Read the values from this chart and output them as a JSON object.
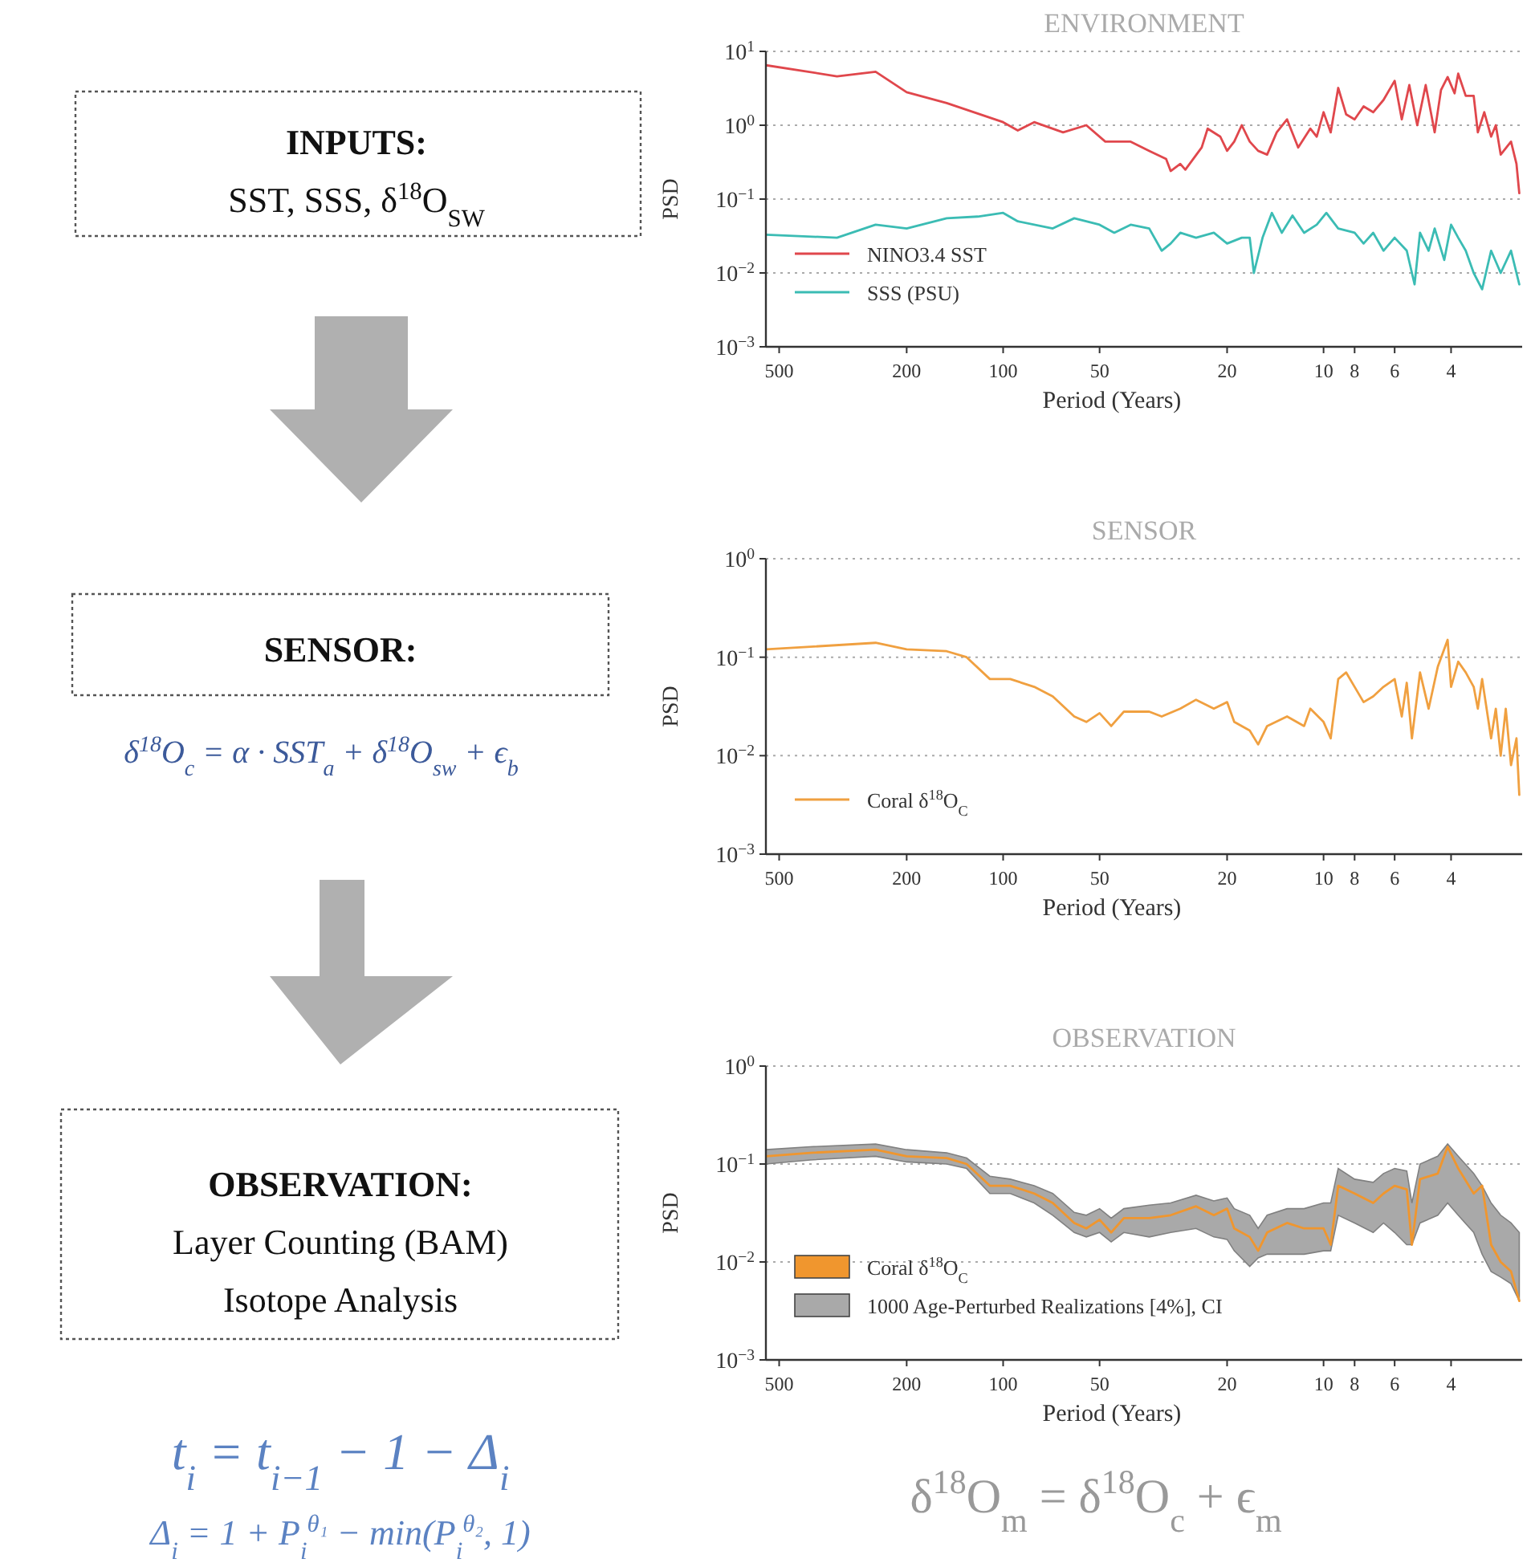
{
  "chart_data": [
    {
      "type": "other",
      "annotations": [
        "INPUTS:",
        "SST, SSS, δ$^{18}$O$_{SW}$",
        "SENSOR:",
        "δ$^{18}$O$_{c}$ = α · SST$_{a}$ + δ$^{18}$O$_{sw}$ + ϵ$_{b}$",
        "OBSERVATION:",
        "Layer Counting (BAM)",
        "Isotope Analysis",
        "t$_{i}$ = t$_{i−1}$ − 1 − Δ$_{i}$",
        "Δ$_{i}$ = 1 + P$_{i}$$^{θ₁}$ − min(P$_{i}$$^{θ₂}$, 1)"
      ]
    },
    {
      "type": "line",
      "title": "ENVIRONMENT",
      "xlabel": "Period (Years)",
      "ylabel": "PSD",
      "log": "xy",
      "grid": "y",
      "legend": "bottom left",
      "xlim": [
        550,
        2.4
      ],
      "xticks": [
        500,
        200,
        100,
        50,
        20,
        10,
        8,
        6,
        4
      ],
      "ylim": [
        0.001,
        10
      ],
      "yticks": [
        {
          "value": 10,
          "label": "10$^{1}$"
        },
        {
          "value": 1,
          "label": "10$^{0}$"
        },
        {
          "value": 0.1,
          "label": "10$^{−1}$"
        },
        {
          "value": 0.01,
          "label": "10$^{−2}$"
        },
        {
          "value": 0.001,
          "label": "10$^{−3}$"
        }
      ],
      "series": [
        {
          "name": "NINO3.4 SST",
          "color": "#e0474c",
          "x": [
            550,
            330,
            250,
            200,
            150,
            100,
            90,
            80,
            65,
            55,
            48,
            40,
            35,
            31,
            30,
            28,
            27,
            24,
            23,
            21,
            20,
            19,
            18,
            17,
            16,
            15,
            14,
            13,
            12,
            11,
            10.5,
            10,
            9.5,
            9,
            8.5,
            8,
            7.5,
            7,
            6.5,
            6,
            5.7,
            5.4,
            5.1,
            4.8,
            4.5,
            4.3,
            4.1,
            3.9,
            3.8,
            3.6,
            3.4,
            3.3,
            3.15,
            3,
            2.9,
            2.8,
            2.6,
            2.5,
            2.45
          ],
          "values": [
            6.5,
            4.6,
            5.3,
            2.8,
            2,
            1.1,
            0.85,
            1.1,
            0.8,
            1.0,
            0.6,
            0.6,
            0.45,
            0.35,
            0.24,
            0.3,
            0.25,
            0.5,
            0.9,
            0.7,
            0.45,
            0.6,
            1.0,
            0.6,
            0.45,
            0.4,
            0.8,
            1.2,
            0.5,
            0.9,
            0.7,
            1.5,
            0.8,
            3.2,
            1.4,
            1.2,
            1.8,
            1.5,
            2.2,
            4,
            1.2,
            3.5,
            1,
            3.5,
            0.8,
            3,
            4.5,
            2.7,
            5,
            2.5,
            2.5,
            0.8,
            1.5,
            0.7,
            1,
            0.4,
            0.6,
            0.3,
            0.12
          ]
        },
        {
          "name": "SSS (PSU)",
          "color": "#3bbcb4",
          "x": [
            550,
            330,
            250,
            200,
            150,
            120,
            100,
            90,
            70,
            60,
            50,
            45,
            40,
            35,
            32,
            30,
            28,
            25,
            22,
            20,
            18,
            17,
            16.5,
            15.5,
            14.5,
            13.5,
            12.5,
            11.5,
            10.5,
            9.8,
            9,
            8,
            7.5,
            7,
            6.5,
            6,
            5.5,
            5.2,
            5,
            4.7,
            4.5,
            4.2,
            4,
            3.8,
            3.6,
            3.4,
            3.2,
            3,
            2.8,
            2.6,
            2.45
          ],
          "values": [
            0.033,
            0.03,
            0.045,
            0.04,
            0.055,
            0.058,
            0.065,
            0.05,
            0.04,
            0.055,
            0.045,
            0.035,
            0.045,
            0.04,
            0.02,
            0.025,
            0.035,
            0.03,
            0.035,
            0.025,
            0.03,
            0.03,
            0.01,
            0.03,
            0.065,
            0.035,
            0.06,
            0.035,
            0.045,
            0.065,
            0.04,
            0.035,
            0.025,
            0.035,
            0.02,
            0.03,
            0.02,
            0.007,
            0.035,
            0.02,
            0.04,
            0.015,
            0.045,
            0.03,
            0.02,
            0.01,
            0.006,
            0.02,
            0.01,
            0.02,
            0.007
          ]
        }
      ]
    },
    {
      "type": "line",
      "title": "SENSOR",
      "xlabel": "Period (Years)",
      "ylabel": "PSD",
      "log": "xy",
      "grid": "y",
      "legend": "bottom left",
      "xlim": [
        550,
        2.4
      ],
      "xticks": [
        500,
        200,
        100,
        50,
        20,
        10,
        8,
        6,
        4
      ],
      "ylim": [
        0.001,
        1
      ],
      "yticks": [
        {
          "value": 1,
          "label": "10$^{0}$"
        },
        {
          "value": 0.1,
          "label": "10$^{−1}$"
        },
        {
          "value": 0.01,
          "label": "10$^{−2}$"
        },
        {
          "value": 0.001,
          "label": "10$^{−3}$"
        }
      ],
      "series": [
        {
          "name": "Coral δ$^{18}$O$_{C}$",
          "color": "#f0a040",
          "x": [
            550,
            250,
            200,
            150,
            130,
            110,
            95,
            80,
            70,
            60,
            55,
            50,
            46,
            42,
            35,
            32,
            28,
            25,
            22,
            20,
            19,
            17,
            16,
            15,
            13,
            11.5,
            11,
            10,
            9.5,
            9,
            8.5,
            8,
            7.5,
            7,
            6.5,
            6,
            5.7,
            5.5,
            5.3,
            5,
            4.7,
            4.4,
            4.1,
            4,
            3.8,
            3.6,
            3.4,
            3.3,
            3.2,
            3,
            2.9,
            2.8,
            2.7,
            2.6,
            2.5,
            2.45
          ],
          "values": [
            0.12,
            0.14,
            0.12,
            0.115,
            0.1,
            0.06,
            0.06,
            0.05,
            0.04,
            0.025,
            0.022,
            0.027,
            0.02,
            0.028,
            0.028,
            0.025,
            0.03,
            0.037,
            0.03,
            0.035,
            0.022,
            0.018,
            0.013,
            0.02,
            0.025,
            0.02,
            0.03,
            0.022,
            0.015,
            0.06,
            0.07,
            0.05,
            0.035,
            0.04,
            0.05,
            0.06,
            0.025,
            0.055,
            0.015,
            0.07,
            0.03,
            0.08,
            0.15,
            0.05,
            0.09,
            0.07,
            0.05,
            0.03,
            0.06,
            0.015,
            0.03,
            0.01,
            0.03,
            0.008,
            0.015,
            0.004
          ]
        }
      ]
    },
    {
      "type": "line",
      "title": "OBSERVATION",
      "xlabel": "Period (Years)",
      "ylabel": "PSD",
      "log": "xy",
      "grid": "y",
      "legend": "bottom left",
      "xlim": [
        550,
        2.4
      ],
      "xticks": [
        500,
        200,
        100,
        50,
        20,
        10,
        8,
        6,
        4
      ],
      "ylim": [
        0.001,
        1
      ],
      "yticks": [
        {
          "value": 1,
          "label": "10$^{0}$"
        },
        {
          "value": 0.1,
          "label": "10$^{−1}$"
        },
        {
          "value": 0.01,
          "label": "10$^{−2}$"
        },
        {
          "value": 0.001,
          "label": "10$^{−3}$"
        }
      ],
      "annotations": [
        "1000 Age-Perturbed Realizations [4%], CI",
        "δ$^{18}$O$_{m}$ = δ$^{18}$O$_{c}$ + ϵ$_{m}$"
      ],
      "series": [
        {
          "name": "Coral δ$^{18}$O$_{C}$",
          "color": "#f0962e",
          "x": [
            550,
            400,
            250,
            200,
            150,
            130,
            110,
            95,
            80,
            70,
            60,
            55,
            50,
            46,
            42,
            35,
            30,
            25,
            22,
            20,
            19,
            17,
            16,
            15,
            13,
            11.5,
            10,
            9.5,
            9,
            8,
            7,
            6.5,
            6,
            5.5,
            5.3,
            5,
            4.4,
            4.1,
            3.8,
            3.4,
            3.2,
            3.0,
            2.8,
            2.6,
            2.45
          ],
          "values": [
            0.12,
            0.13,
            0.14,
            0.12,
            0.115,
            0.1,
            0.06,
            0.06,
            0.05,
            0.04,
            0.025,
            0.022,
            0.027,
            0.02,
            0.028,
            0.028,
            0.03,
            0.037,
            0.03,
            0.035,
            0.022,
            0.018,
            0.013,
            0.02,
            0.025,
            0.022,
            0.022,
            0.015,
            0.06,
            0.05,
            0.04,
            0.05,
            0.06,
            0.055,
            0.015,
            0.07,
            0.08,
            0.15,
            0.09,
            0.05,
            0.06,
            0.015,
            0.01,
            0.008,
            0.004
          ],
          "lower": [
            0.1,
            0.11,
            0.12,
            0.105,
            0.1,
            0.09,
            0.05,
            0.05,
            0.04,
            0.03,
            0.02,
            0.018,
            0.02,
            0.016,
            0.02,
            0.018,
            0.02,
            0.022,
            0.018,
            0.017,
            0.013,
            0.009,
            0.011,
            0.012,
            0.012,
            0.012,
            0.013,
            0.013,
            0.03,
            0.025,
            0.02,
            0.025,
            0.02,
            0.015,
            0.015,
            0.025,
            0.03,
            0.04,
            0.03,
            0.02,
            0.012,
            0.008,
            0.007,
            0.006,
            0.004
          ],
          "upper": [
            0.14,
            0.15,
            0.16,
            0.14,
            0.13,
            0.115,
            0.075,
            0.07,
            0.06,
            0.05,
            0.032,
            0.03,
            0.035,
            0.028,
            0.035,
            0.038,
            0.04,
            0.048,
            0.042,
            0.045,
            0.035,
            0.03,
            0.022,
            0.03,
            0.035,
            0.035,
            0.04,
            0.04,
            0.09,
            0.07,
            0.065,
            0.08,
            0.09,
            0.085,
            0.04,
            0.1,
            0.12,
            0.16,
            0.12,
            0.08,
            0.06,
            0.04,
            0.03,
            0.025,
            0.02
          ]
        }
      ]
    }
  ]
}
